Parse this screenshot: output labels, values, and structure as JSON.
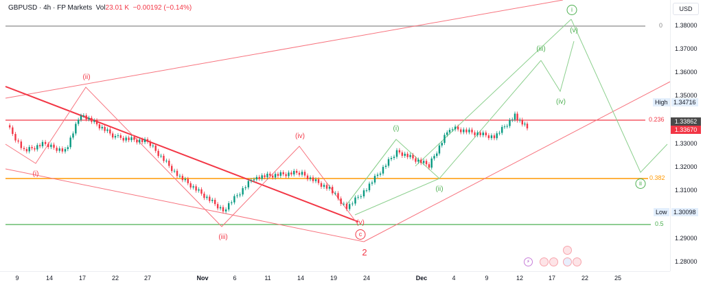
{
  "header": {
    "symbol": "GBPUSD",
    "sep1": " · ",
    "interval": "4h",
    "sep2": " · ",
    "exchange": "FP Markets",
    "vol_label": "Vol",
    "vol_value": "23.01 K",
    "change": "−0.00192 (−0.14%)"
  },
  "price_axis": {
    "currency": "USD",
    "ticks": [
      "1.38000",
      "1.37000",
      "1.36000",
      "1.35000",
      "1.33000",
      "1.32000",
      "1.31000",
      "1.29000",
      "1.28000"
    ],
    "high_label": "High",
    "high_value": "1.34716",
    "low_label": "Low",
    "low_value": "1.30098",
    "last_close": "1.33862",
    "current_price": "1.33670"
  },
  "fib_levels": [
    {
      "label": "0",
      "price": 1.38,
      "color": "#9e9e9e"
    },
    {
      "label": "0.236",
      "price": 1.3402,
      "color": "#f23645"
    },
    {
      "label": "0.382",
      "price": 1.3155,
      "color": "#ff9800"
    },
    {
      "label": "0.5",
      "price": 1.296,
      "color": "#4caf50"
    }
  ],
  "time_axis": {
    "labels": [
      {
        "text": "9",
        "bold": false
      },
      {
        "text": "14",
        "bold": false
      },
      {
        "text": "17",
        "bold": false
      },
      {
        "text": "22",
        "bold": false
      },
      {
        "text": "27",
        "bold": false
      },
      {
        "text": "Nov",
        "bold": true
      },
      {
        "text": "6",
        "bold": false
      },
      {
        "text": "11",
        "bold": false
      },
      {
        "text": "14",
        "bold": false
      },
      {
        "text": "19",
        "bold": false
      },
      {
        "text": "24",
        "bold": false
      },
      {
        "text": "Dec",
        "bold": true
      },
      {
        "text": "4",
        "bold": false
      },
      {
        "text": "9",
        "bold": false
      },
      {
        "text": "12",
        "bold": false
      },
      {
        "text": "17",
        "bold": false
      },
      {
        "text": "22",
        "bold": false
      },
      {
        "text": "25",
        "bold": false
      }
    ]
  },
  "wave_labels": {
    "red": [
      "(i)",
      "(ii)",
      "(iii)",
      "(iv)",
      "(v)",
      "c",
      "2"
    ],
    "green": [
      "(i)",
      "(ii)",
      "(iii)",
      "(iv)",
      "(v)",
      "i",
      "ii"
    ]
  },
  "events": {
    "lightning": "⚡",
    "flags": [
      "GB",
      "GB",
      "US",
      "GB",
      "GB"
    ]
  },
  "colors": {
    "up": "#089981",
    "down": "#f23645",
    "bear_wave": "#f23645",
    "bull_wave": "#4caf50"
  },
  "chart_data": {
    "type": "candlestick",
    "title": "GBPUSD · 4h · FP Markets",
    "xlabel": "",
    "ylabel": "USD",
    "ylim": [
      1.275,
      1.385
    ],
    "x_ticks": [
      "9",
      "14",
      "17",
      "22",
      "27",
      "Nov",
      "6",
      "11",
      "14",
      "19",
      "24",
      "Dec",
      "4",
      "9",
      "12",
      "17",
      "22",
      "25"
    ],
    "approx_swing_closes": [
      {
        "date": "Oct 9",
        "price": 1.338
      },
      {
        "date": "Oct 11",
        "price": 1.327
      },
      {
        "date": "Oct 14",
        "price": 1.33
      },
      {
        "date": "Oct 16",
        "price": 1.327
      },
      {
        "date": "Oct 18",
        "price": 1.343
      },
      {
        "date": "Oct 22",
        "price": 1.333
      },
      {
        "date": "Oct 27",
        "price": 1.331
      },
      {
        "date": "Oct 30",
        "price": 1.317
      },
      {
        "date": "Nov 4",
        "price": 1.302
      },
      {
        "date": "Nov 8",
        "price": 1.316
      },
      {
        "date": "Nov 14",
        "price": 1.318
      },
      {
        "date": "Nov 19",
        "price": 1.311
      },
      {
        "date": "Nov 22",
        "price": 1.303
      },
      {
        "date": "Nov 25",
        "price": 1.31
      },
      {
        "date": "Nov 29",
        "price": 1.327
      },
      {
        "date": "Dec 2",
        "price": 1.321
      },
      {
        "date": "Dec 4",
        "price": 1.337
      },
      {
        "date": "Dec 9",
        "price": 1.333
      },
      {
        "date": "Dec 11",
        "price": 1.342
      },
      {
        "date": "Dec 13",
        "price": 1.3367
      }
    ],
    "high": 1.34716,
    "low": 1.30098,
    "last": 1.3367,
    "fibonacci": {
      "0": 1.38,
      "0.236": 1.3402,
      "0.382": 1.3155,
      "0.5": 1.296
    },
    "annotations": [
      "Elliott wave red (i)-(v), c, 2",
      "Elliott wave green (i)-(v), i, ii projection"
    ]
  }
}
